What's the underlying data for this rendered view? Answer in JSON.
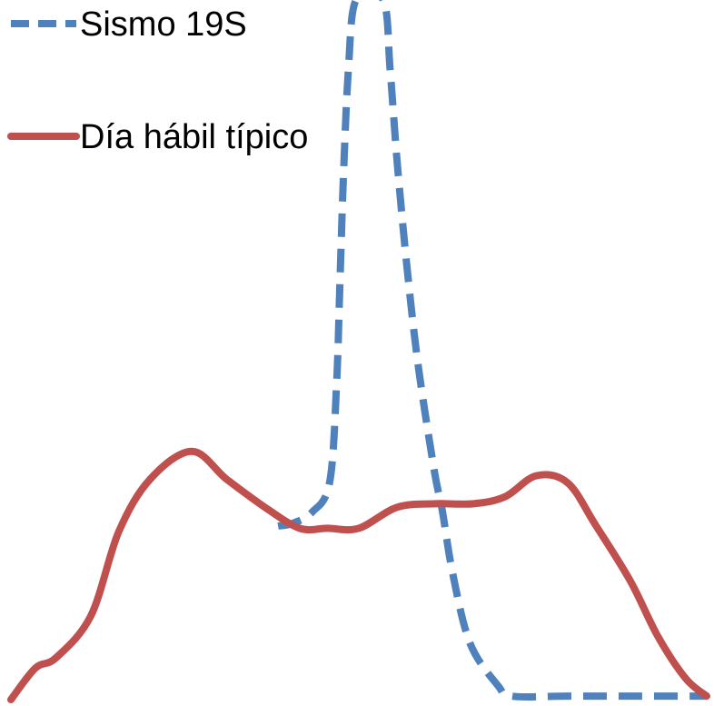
{
  "chart_data": {
    "type": "line",
    "title": "",
    "xlabel": "",
    "ylabel": "",
    "xlim": [
      0,
      100
    ],
    "ylim": [
      0,
      100
    ],
    "grid": false,
    "legend_position": "top-left",
    "series": [
      {
        "name": "Sismo 19S",
        "color": "#4f81bd",
        "style": "dashed",
        "points": [
          [
            38.4,
            24.8
          ],
          [
            40.5,
            25.2
          ],
          [
            43.3,
            26.8
          ],
          [
            45.8,
            31.0
          ],
          [
            46.8,
            45.0
          ],
          [
            47.3,
            60.0
          ],
          [
            47.8,
            75.0
          ],
          [
            48.5,
            90.0
          ],
          [
            49.6,
            100.0
          ],
          [
            53.5,
            100.0
          ],
          [
            54.5,
            90.0
          ],
          [
            55.5,
            77.0
          ],
          [
            56.8,
            63.0
          ],
          [
            58.5,
            48.0
          ],
          [
            60.8,
            33.0
          ],
          [
            62.0,
            27.0
          ],
          [
            63.5,
            18.0
          ],
          [
            66.0,
            8.0
          ],
          [
            70.0,
            2.0
          ],
          [
            72.0,
            0.5
          ],
          [
            80.0,
            0.5
          ],
          [
            90.0,
            0.5
          ],
          [
            100.0,
            0.5
          ]
        ]
      },
      {
        "name": "Día hábil típico",
        "color": "#c0504d",
        "style": "solid",
        "points": [
          [
            0,
            0
          ],
          [
            3.5,
            4.5
          ],
          [
            6.5,
            6.0
          ],
          [
            11.5,
            12.0
          ],
          [
            15.5,
            24.0
          ],
          [
            20.0,
            31.5
          ],
          [
            26.0,
            35.5
          ],
          [
            31.0,
            31.5
          ],
          [
            36.5,
            27.5
          ],
          [
            41.5,
            24.5
          ],
          [
            45.5,
            24.5
          ],
          [
            50.0,
            24.5
          ],
          [
            55.5,
            27.5
          ],
          [
            61.0,
            28.0
          ],
          [
            66.5,
            28.0
          ],
          [
            71.0,
            29.0
          ],
          [
            75.5,
            32.0
          ],
          [
            80.0,
            31.0
          ],
          [
            84.0,
            25.0
          ],
          [
            89.0,
            17.0
          ],
          [
            93.0,
            9.0
          ],
          [
            97.0,
            3.0
          ],
          [
            100.0,
            0.5
          ]
        ]
      }
    ]
  }
}
